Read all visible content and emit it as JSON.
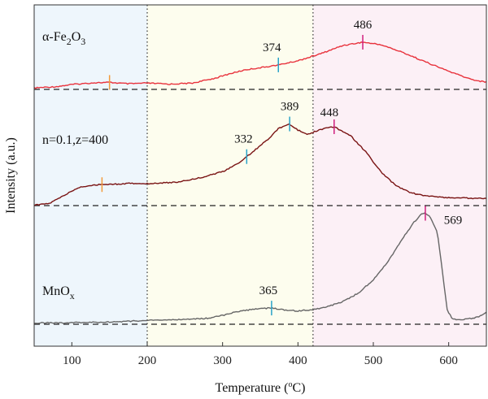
{
  "chart_data": {
    "type": "line",
    "title": "",
    "xlabel": "Temperature (°C)",
    "xlabel_parts": {
      "main": "Temperature (",
      "degree": "o",
      "unit": "C)"
    },
    "ylabel": "Intensity (a.u.)",
    "xlim": [
      50,
      650
    ],
    "x_ticks": [
      100,
      200,
      300,
      400,
      500,
      600
    ],
    "x_tick_labels": [
      "100",
      "200",
      "300",
      "400",
      "500",
      "600"
    ],
    "y_ticks": "none",
    "regions": [
      {
        "from": 50,
        "to": 200,
        "color": "#eef6fc"
      },
      {
        "from": 200,
        "to": 420,
        "color": "#fdfdee"
      },
      {
        "from": 420,
        "to": 650,
        "color": "#fcf0f6"
      }
    ],
    "region_dividers": [
      200,
      420
    ],
    "series": [
      {
        "name": "α-Fe2O3",
        "label_parts": {
          "pre": "α-Fe",
          "sub1": "2",
          "mid": "O",
          "sub2": "3"
        },
        "color": "#e8323c",
        "baseline_value": 0.0,
        "points": [
          [
            50,
            0.4
          ],
          [
            80,
            0.8
          ],
          [
            100,
            1.4
          ],
          [
            130,
            1.9
          ],
          [
            150,
            2.0
          ],
          [
            175,
            1.6
          ],
          [
            200,
            1.8
          ],
          [
            230,
            1.5
          ],
          [
            260,
            1.8
          ],
          [
            290,
            3.2
          ],
          [
            310,
            4.5
          ],
          [
            330,
            5.6
          ],
          [
            350,
            6.2
          ],
          [
            374,
            7.0
          ],
          [
            400,
            8.2
          ],
          [
            430,
            10.2
          ],
          [
            460,
            12.6
          ],
          [
            486,
            13.5
          ],
          [
            510,
            12.8
          ],
          [
            540,
            10.5
          ],
          [
            570,
            7.8
          ],
          [
            600,
            5.2
          ],
          [
            625,
            3.2
          ],
          [
            640,
            2.4
          ],
          [
            650,
            2.1
          ]
        ],
        "peaks": [
          {
            "x": 150,
            "marker_color": "#f39b3a",
            "label": ""
          },
          {
            "x": 374,
            "marker_color": "#29a3c9",
            "label": "374"
          },
          {
            "x": 486,
            "marker_color": "#d01f7e",
            "label": "486"
          }
        ]
      },
      {
        "name": "n=0.1,z=400",
        "color": "#7a1414",
        "baseline_value": 0.0,
        "points": [
          [
            50,
            0.1
          ],
          [
            70,
            0.5
          ],
          [
            90,
            2.6
          ],
          [
            110,
            4.6
          ],
          [
            130,
            5.2
          ],
          [
            145,
            5.3
          ],
          [
            160,
            5.4
          ],
          [
            180,
            5.6
          ],
          [
            200,
            5.5
          ],
          [
            240,
            5.9
          ],
          [
            270,
            7.0
          ],
          [
            300,
            8.5
          ],
          [
            320,
            10.5
          ],
          [
            332,
            12.3
          ],
          [
            350,
            15.0
          ],
          [
            365,
            17.5
          ],
          [
            375,
            19.5
          ],
          [
            389,
            20.5
          ],
          [
            400,
            19.0
          ],
          [
            412,
            17.8
          ],
          [
            425,
            18.8
          ],
          [
            440,
            19.6
          ],
          [
            448,
            19.8
          ],
          [
            470,
            17.5
          ],
          [
            490,
            13.5
          ],
          [
            510,
            8.5
          ],
          [
            530,
            5.0
          ],
          [
            550,
            3.2
          ],
          [
            570,
            2.4
          ],
          [
            600,
            2.0
          ],
          [
            620,
            1.9
          ],
          [
            650,
            1.8
          ]
        ],
        "peaks": [
          {
            "x": 140,
            "marker_color": "#f39b3a",
            "label": ""
          },
          {
            "x": 332,
            "marker_color": "#29a3c9",
            "label": "332"
          },
          {
            "x": 389,
            "marker_color": "#29a3c9",
            "label": "389"
          },
          {
            "x": 448,
            "marker_color": "#d01f7e",
            "label": "448"
          }
        ]
      },
      {
        "name": "MnOx",
        "label_parts": {
          "pre": "MnO",
          "sub1": "x"
        },
        "color": "#666666",
        "baseline_value": 0.0,
        "points": [
          [
            50,
            0.4
          ],
          [
            100,
            0.5
          ],
          [
            150,
            0.7
          ],
          [
            200,
            1.2
          ],
          [
            250,
            1.5
          ],
          [
            280,
            1.9
          ],
          [
            300,
            2.8
          ],
          [
            320,
            4.0
          ],
          [
            340,
            4.7
          ],
          [
            355,
            5.0
          ],
          [
            365,
            5.1
          ],
          [
            380,
            4.6
          ],
          [
            400,
            4.2
          ],
          [
            420,
            4.6
          ],
          [
            440,
            5.6
          ],
          [
            460,
            7.2
          ],
          [
            480,
            9.8
          ],
          [
            500,
            14.0
          ],
          [
            520,
            20.0
          ],
          [
            540,
            27.5
          ],
          [
            555,
            32.5
          ],
          [
            565,
            35.0
          ],
          [
            569,
            35.0
          ],
          [
            575,
            34.0
          ],
          [
            585,
            29.0
          ],
          [
            592,
            16.0
          ],
          [
            598,
            4.5
          ],
          [
            605,
            1.6
          ],
          [
            615,
            1.4
          ],
          [
            630,
            1.8
          ],
          [
            640,
            2.4
          ],
          [
            650,
            3.8
          ]
        ],
        "peaks": [
          {
            "x": 365,
            "marker_color": "#29a3c9",
            "label": "365"
          },
          {
            "x": 569,
            "marker_color": "#d01f7e",
            "label": "569"
          }
        ]
      }
    ]
  }
}
